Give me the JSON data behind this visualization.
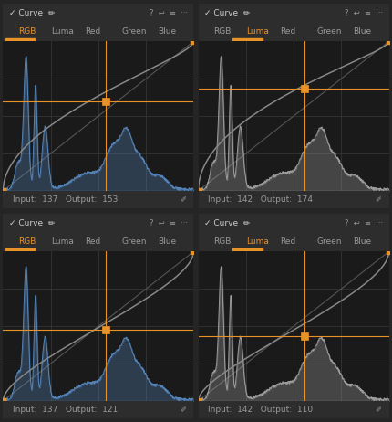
{
  "bg_color": "#252525",
  "panel_bg": "#2d2d2d",
  "plot_bg": "#1a1a1a",
  "grid_color": "#3a3a3a",
  "orange": "#e8922a",
  "text_color": "#999999",
  "title_color": "#cccccc",
  "blue_curve": "#5b8fc9",
  "gray_curve": "#aaaaaa",
  "panels": [
    {
      "active_tab": "RGB",
      "curve_color": "#5b8fc9",
      "input": 137,
      "output": 153,
      "cp": [
        0.537,
        0.6
      ],
      "curve_up": true
    },
    {
      "active_tab": "Luma",
      "curve_color": "#aaaaaa",
      "input": 142,
      "output": 174,
      "cp": [
        0.557,
        0.682
      ],
      "curve_up": true
    },
    {
      "active_tab": "RGB",
      "curve_color": "#5b8fc9",
      "input": 137,
      "output": 121,
      "cp": [
        0.537,
        0.474
      ],
      "curve_up": false
    },
    {
      "active_tab": "Luma",
      "curve_color": "#aaaaaa",
      "input": 142,
      "output": 110,
      "cp": [
        0.557,
        0.431
      ],
      "curve_up": false
    }
  ],
  "tabs": [
    "RGB",
    "Luma",
    "Red",
    "Green",
    "Blue"
  ],
  "figw": 4.3,
  "figh": 4.62,
  "dpi": 100
}
